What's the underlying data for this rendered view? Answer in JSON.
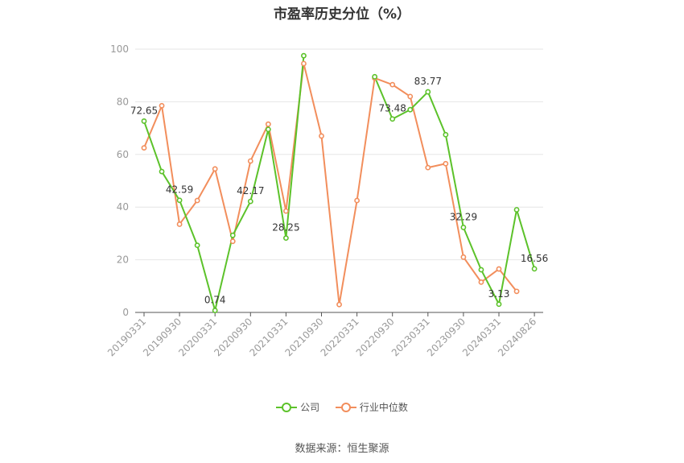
{
  "title": "市盈率历史分位（%）",
  "source": "数据来源：恒生聚源",
  "colors": {
    "company": "#5cc22a",
    "industry": "#f28e5c",
    "grid": "#e6e6e6",
    "axis": "#999999"
  },
  "chart_data": {
    "type": "line",
    "title": "市盈率历史分位（%）",
    "ylim": [
      0,
      100
    ],
    "yticks": [
      0,
      20,
      40,
      60,
      80,
      100
    ],
    "grid": true,
    "legend_position": "bottom",
    "x_tick_labels": [
      "20190331",
      "20190930",
      "20200331",
      "20200930",
      "20210331",
      "20210930",
      "20220331",
      "20220930",
      "20230331",
      "20230930",
      "20240331",
      "20240826"
    ],
    "x_tick_index": [
      0,
      2,
      4,
      6,
      8,
      10,
      12,
      14,
      16,
      18,
      20,
      22
    ],
    "series": [
      {
        "name": "公司",
        "color": "#5cc22a",
        "values": [
          72.65,
          53.5,
          42.59,
          25.5,
          0.74,
          29.3,
          42.17,
          69.5,
          28.25,
          97.5,
          null,
          null,
          null,
          89.5,
          73.48,
          77.0,
          83.77,
          67.5,
          32.29,
          16.2,
          3.13,
          39.0,
          16.56
        ],
        "labeled_points": [
          {
            "index": 0,
            "text": "72.65"
          },
          {
            "index": 2,
            "text": "42.59"
          },
          {
            "index": 4,
            "text": "0.74"
          },
          {
            "index": 6,
            "text": "42.17"
          },
          {
            "index": 8,
            "text": "28.25"
          },
          {
            "index": 14,
            "text": "73.48"
          },
          {
            "index": 16,
            "text": "83.77"
          },
          {
            "index": 18,
            "text": "32.29"
          },
          {
            "index": 20,
            "text": "3.13"
          },
          {
            "index": 22,
            "text": "16.56"
          }
        ]
      },
      {
        "name": "行业中位数",
        "color": "#f28e5c",
        "values": [
          62.5,
          78.5,
          33.5,
          42.5,
          54.5,
          27.0,
          57.5,
          71.5,
          38.5,
          94.5,
          67.0,
          3.0,
          42.5,
          89.0,
          86.5,
          82.0,
          55.0,
          56.5,
          21.0,
          11.5,
          16.5,
          8.0,
          null
        ]
      }
    ]
  }
}
